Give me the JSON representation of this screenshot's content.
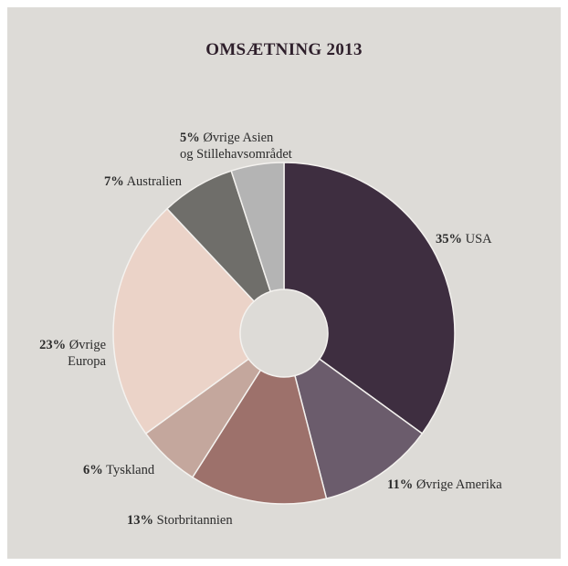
{
  "chart_data": {
    "type": "pie",
    "title": "OMSÆTNING 2013",
    "slices": [
      {
        "pct": 35,
        "pct_label": "35%",
        "name": [
          "USA"
        ],
        "color": "#3e2e40"
      },
      {
        "pct": 11,
        "pct_label": "11%",
        "name": [
          "Øvrige Amerika"
        ],
        "color": "#6b5c6c"
      },
      {
        "pct": 13,
        "pct_label": "13%",
        "name": [
          "Storbritannien"
        ],
        "color": "#9d716b"
      },
      {
        "pct": 6,
        "pct_label": "6%",
        "name": [
          "Tyskland"
        ],
        "color": "#c4a79d"
      },
      {
        "pct": 23,
        "pct_label": "23%",
        "name": [
          "Øvrige",
          "Europa"
        ],
        "color": "#ebd3c8"
      },
      {
        "pct": 7,
        "pct_label": "7%",
        "name": [
          "Australien"
        ],
        "color": "#6f6e6a"
      },
      {
        "pct": 5,
        "pct_label": "5%",
        "name": [
          "Øvrige Asien",
          "og Stillehavsområdet"
        ],
        "color": "#b4b4b4"
      }
    ],
    "donut": true,
    "legend": "none"
  }
}
